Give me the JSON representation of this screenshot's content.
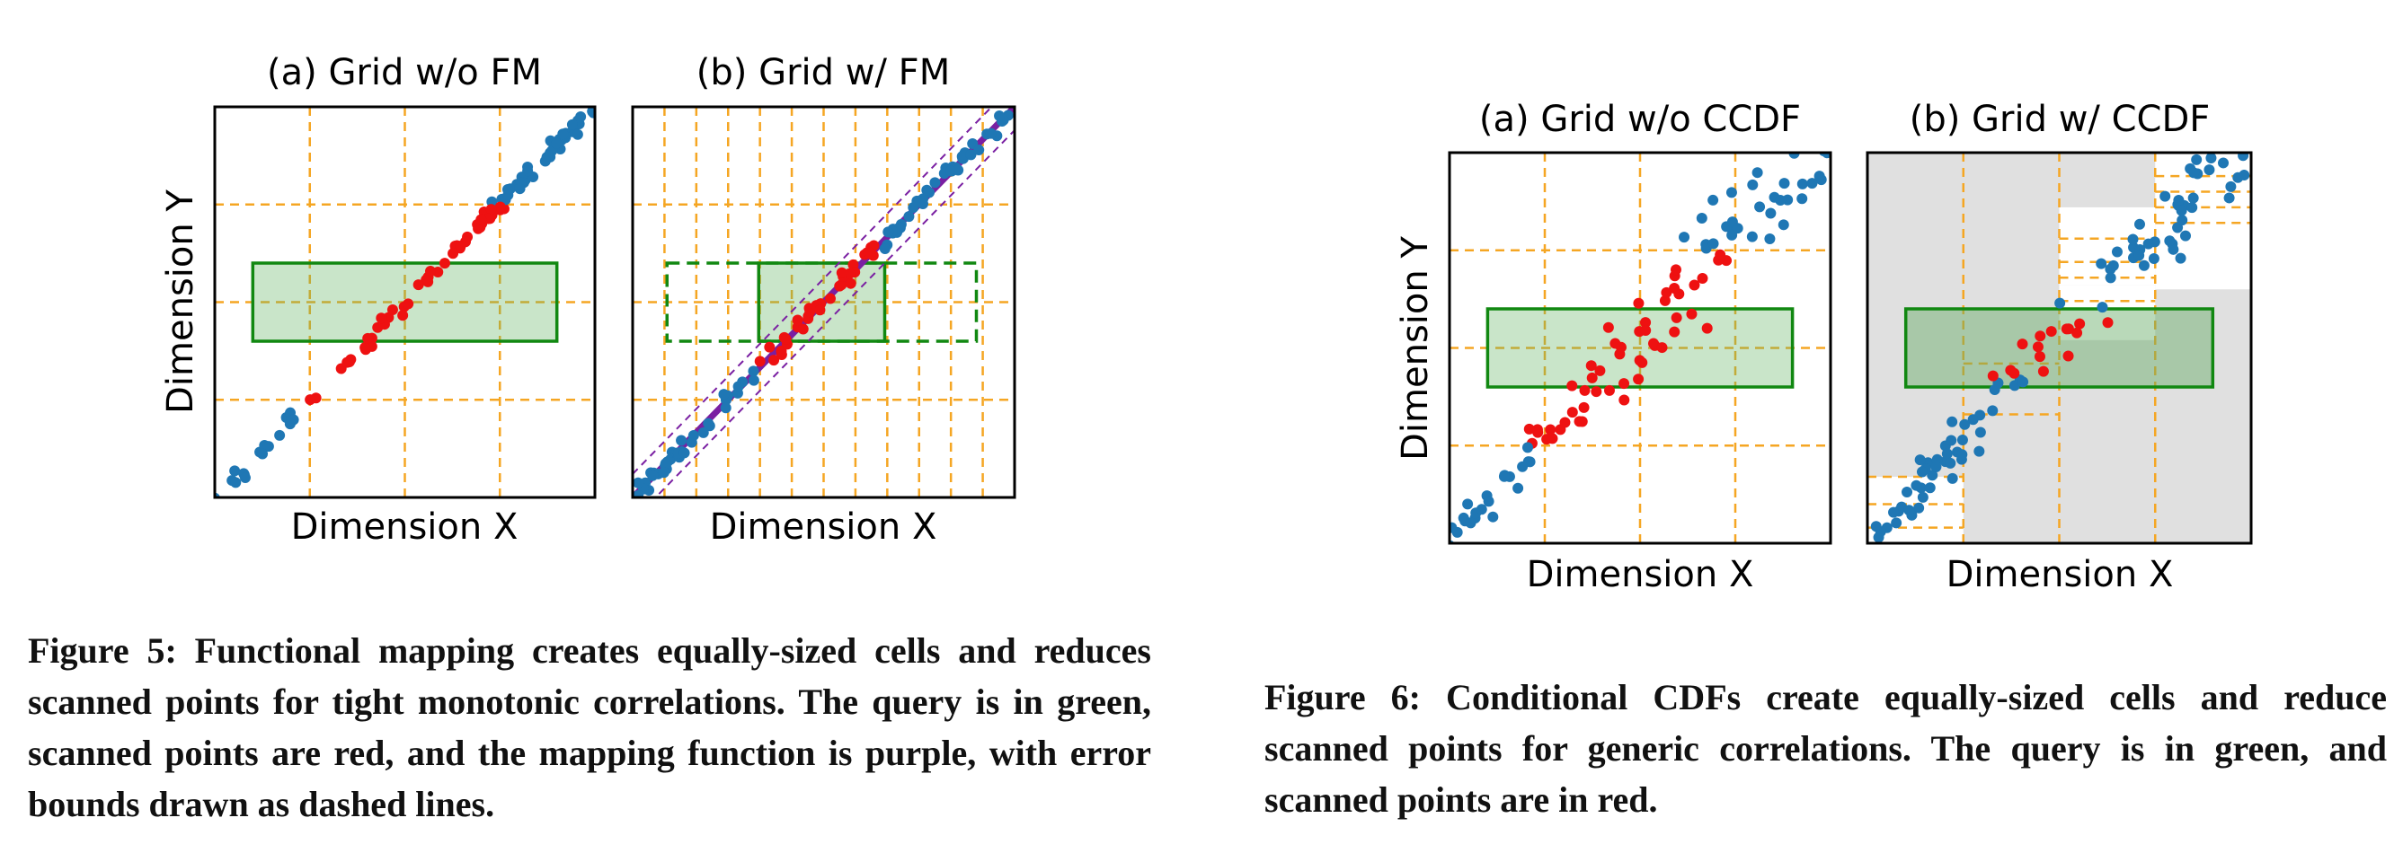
{
  "figures": [
    {
      "panels": [
        {
          "title": "(a) Grid w/o FM",
          "x_label": "Dimension X"
        },
        {
          "title": "(b) Grid w/ FM",
          "x_label": "Dimension X"
        }
      ],
      "y_label": "Dimension Y",
      "caption": "Figure 5: Functional mapping creates equally-sized cells and reduces scanned points for tight monotonic correlations. The query is in green, scanned points are red, and the mapping function is purple, with error bounds drawn as dashed lines."
    },
    {
      "panels": [
        {
          "title": "(a) Grid w/o CCDF",
          "x_label": "Dimension X"
        },
        {
          "title": "(b) Grid w/ CCDF",
          "x_label": "Dimension X"
        }
      ],
      "y_label": "Dimension Y",
      "caption": "Figure 6: Conditional CDFs create equally-sized cells and reduce scanned points for generic correlations. The query is in green, and scanned points are in red."
    }
  ]
}
